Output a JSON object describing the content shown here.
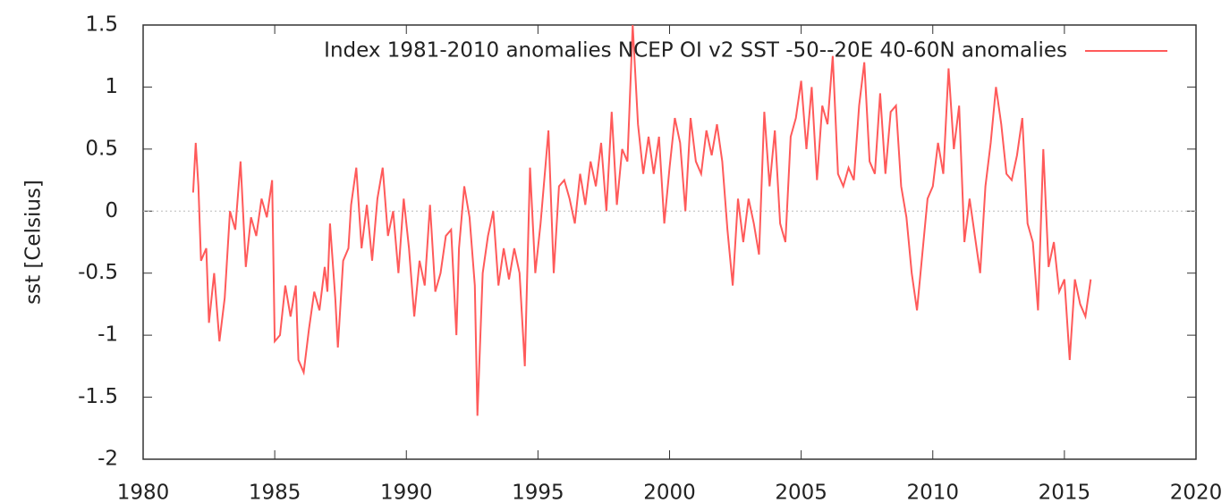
{
  "chart_data": {
    "type": "line",
    "ylabel": "sst [Celsius]",
    "xlim": [
      1980,
      2020
    ],
    "xticks": [
      1980,
      1985,
      1990,
      1995,
      2000,
      2005,
      2010,
      2015,
      2020
    ],
    "ylim": [
      -2,
      1.5
    ],
    "yticks": [
      -2,
      -1.5,
      -1,
      -0.5,
      0,
      0.5,
      1,
      1.5
    ],
    "hlines": [
      0
    ],
    "legend": "top-right",
    "x": [
      1981.9,
      1982.0,
      1982.1,
      1982.2,
      1982.4,
      1982.5,
      1982.7,
      1982.9,
      1983.1,
      1983.3,
      1983.5,
      1983.7,
      1983.9,
      1984.1,
      1984.3,
      1984.5,
      1984.7,
      1984.9,
      1985.0,
      1985.2,
      1985.4,
      1985.6,
      1985.8,
      1985.9,
      1986.1,
      1986.3,
      1986.5,
      1986.7,
      1986.9,
      1987.0,
      1987.1,
      1987.3,
      1987.4,
      1987.6,
      1987.8,
      1987.9,
      1988.1,
      1988.3,
      1988.5,
      1988.7,
      1988.9,
      1989.1,
      1989.3,
      1989.5,
      1989.7,
      1989.9,
      1990.1,
      1990.3,
      1990.5,
      1990.7,
      1990.9,
      1991.1,
      1991.3,
      1991.5,
      1991.7,
      1991.9,
      1992.0,
      1992.2,
      1992.4,
      1992.6,
      1992.7,
      1992.9,
      1993.1,
      1993.3,
      1993.5,
      1993.7,
      1993.9,
      1994.1,
      1994.3,
      1994.5,
      1994.7,
      1994.9,
      1995.1,
      1995.3,
      1995.4,
      1995.6,
      1995.8,
      1996.0,
      1996.2,
      1996.4,
      1996.6,
      1996.8,
      1997.0,
      1997.2,
      1997.4,
      1997.6,
      1997.8,
      1998.0,
      1998.2,
      1998.4,
      1998.6,
      1998.8,
      1999.0,
      1999.2,
      1999.4,
      1999.6,
      1999.8,
      2000.0,
      2000.2,
      2000.4,
      2000.6,
      2000.8,
      2001.0,
      2001.2,
      2001.4,
      2001.6,
      2001.8,
      2002.0,
      2002.2,
      2002.4,
      2002.6,
      2002.8,
      2003.0,
      2003.2,
      2003.4,
      2003.6,
      2003.8,
      2004.0,
      2004.2,
      2004.4,
      2004.6,
      2004.8,
      2005.0,
      2005.2,
      2005.4,
      2005.6,
      2005.8,
      2006.0,
      2006.2,
      2006.4,
      2006.6,
      2006.8,
      2007.0,
      2007.2,
      2007.4,
      2007.6,
      2007.8,
      2008.0,
      2008.2,
      2008.4,
      2008.6,
      2008.8,
      2009.0,
      2009.2,
      2009.4,
      2009.6,
      2009.8,
      2010.0,
      2010.2,
      2010.4,
      2010.6,
      2010.8,
      2011.0,
      2011.2,
      2011.4,
      2011.6,
      2011.8,
      2012.0,
      2012.2,
      2012.4,
      2012.6,
      2012.8,
      2013.0,
      2013.2,
      2013.4,
      2013.6,
      2013.8,
      2014.0,
      2014.2,
      2014.4,
      2014.6,
      2014.8,
      2015.0,
      2015.2,
      2015.4,
      2015.6,
      2015.8,
      2016.0
    ],
    "series": [
      {
        "name": "Index 1981-2010 anomalies NCEP OI v2 SST -50--20E 40-60N anomalies",
        "color": "#ff5a5a",
        "values": [
          0.15,
          0.55,
          0.2,
          -0.4,
          -0.3,
          -0.9,
          -0.5,
          -1.05,
          -0.7,
          0.0,
          -0.15,
          0.4,
          -0.45,
          -0.05,
          -0.2,
          0.1,
          -0.05,
          0.25,
          -1.05,
          -1.0,
          -0.6,
          -0.85,
          -0.6,
          -1.2,
          -1.3,
          -0.95,
          -0.65,
          -0.8,
          -0.45,
          -0.65,
          -0.1,
          -0.7,
          -1.1,
          -0.4,
          -0.3,
          0.05,
          0.35,
          -0.3,
          0.05,
          -0.4,
          0.1,
          0.35,
          -0.2,
          0.0,
          -0.5,
          0.1,
          -0.3,
          -0.85,
          -0.4,
          -0.6,
          0.05,
          -0.65,
          -0.5,
          -0.2,
          -0.15,
          -1.0,
          -0.3,
          0.2,
          -0.05,
          -0.6,
          -1.65,
          -0.5,
          -0.2,
          0.0,
          -0.6,
          -0.3,
          -0.55,
          -0.3,
          -0.5,
          -1.25,
          0.35,
          -0.5,
          -0.1,
          0.4,
          0.65,
          -0.5,
          0.2,
          0.25,
          0.1,
          -0.1,
          0.3,
          0.05,
          0.4,
          0.2,
          0.55,
          0.0,
          0.8,
          0.05,
          0.5,
          0.4,
          1.5,
          0.7,
          0.3,
          0.6,
          0.3,
          0.6,
          -0.1,
          0.35,
          0.75,
          0.55,
          0.0,
          0.75,
          0.4,
          0.3,
          0.65,
          0.45,
          0.7,
          0.4,
          -0.15,
          -0.6,
          0.1,
          -0.25,
          0.1,
          -0.1,
          -0.35,
          0.8,
          0.2,
          0.65,
          -0.1,
          -0.25,
          0.6,
          0.75,
          1.05,
          0.5,
          1.0,
          0.25,
          0.85,
          0.7,
          1.25,
          0.3,
          0.2,
          0.35,
          0.25,
          0.85,
          1.2,
          0.4,
          0.3,
          0.95,
          0.3,
          0.8,
          0.85,
          0.2,
          -0.05,
          -0.5,
          -0.8,
          -0.35,
          0.1,
          0.2,
          0.55,
          0.3,
          1.15,
          0.5,
          0.85,
          -0.25,
          0.1,
          -0.2,
          -0.5,
          0.2,
          0.55,
          1.0,
          0.7,
          0.3,
          0.25,
          0.45,
          0.75,
          -0.1,
          -0.25,
          -0.8,
          0.5,
          -0.45,
          -0.25,
          -0.65,
          -0.55,
          -1.2,
          -0.55,
          -0.75,
          -0.85,
          -0.55
        ]
      }
    ]
  }
}
